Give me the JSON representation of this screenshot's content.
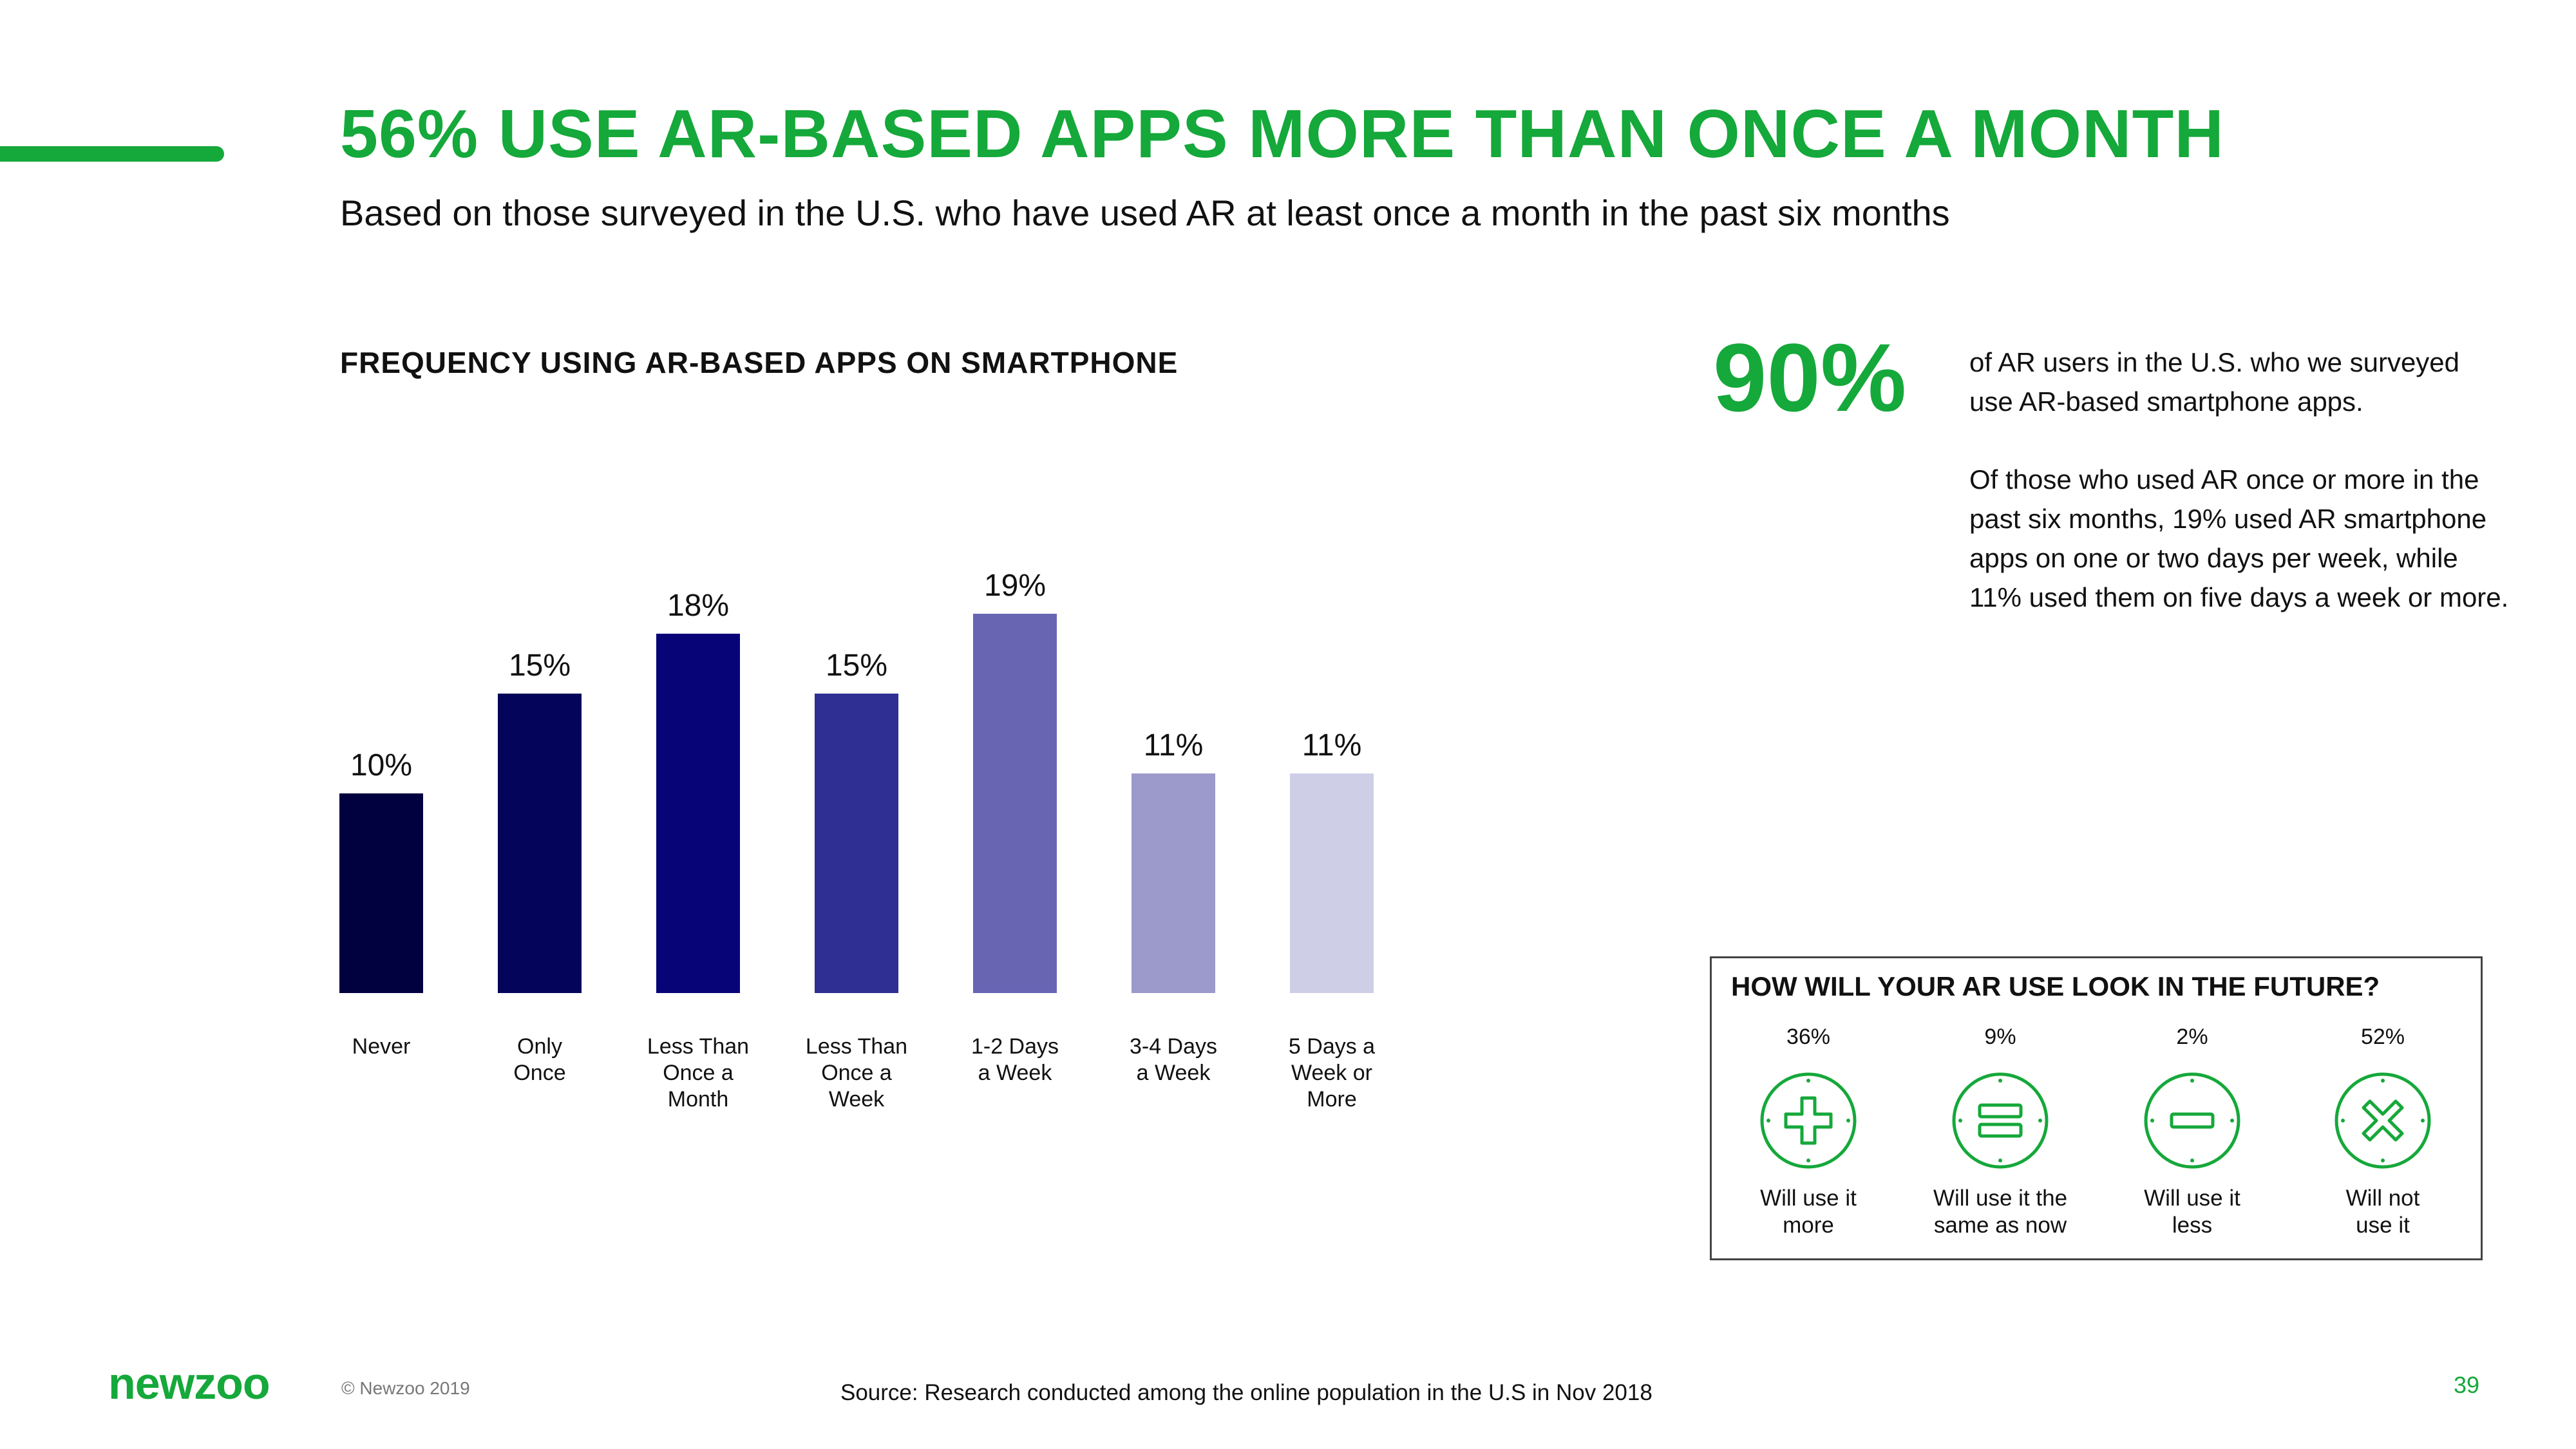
{
  "header": {
    "title": "56% USE AR-BASED APPS MORE THAN ONCE A MONTH",
    "subtitle": "Based on those surveyed in the U.S. who have used AR at least once a month in the past six months"
  },
  "chart_data": {
    "type": "bar",
    "title": "FREQUENCY USING AR-BASED APPS ON SMARTPHONE",
    "categories": [
      [
        "Never"
      ],
      [
        "Only",
        "Once"
      ],
      [
        "Less Than",
        "Once a",
        "Month"
      ],
      [
        "Less Than",
        "Once a",
        "Week"
      ],
      [
        "1-2 Days",
        "a Week"
      ],
      [
        "3-4 Days",
        "a Week"
      ],
      [
        "5 Days a",
        "Week or",
        "More"
      ]
    ],
    "values": [
      10,
      15,
      18,
      15,
      19,
      11,
      11
    ],
    "value_labels": [
      "10%",
      "15%",
      "18%",
      "15%",
      "19%",
      "11%",
      "11%"
    ],
    "bar_colors": [
      "#020140",
      "#04045a",
      "#070478",
      "#2e2e93",
      "#6866b3",
      "#9b9acb",
      "#cfcee7"
    ],
    "xlabel": "",
    "ylabel": "",
    "ylim": [
      0,
      25
    ],
    "grid": false
  },
  "stat": {
    "value": "90%",
    "text1": "of AR users in the U.S. who we surveyed use AR-based smartphone apps.",
    "text2": "Of those who used AR once or more in the past six months, 19% used AR smartphone apps on one or two days per week, while 11% used them on five days a week or more."
  },
  "future": {
    "title": "HOW WILL YOUR AR USE LOOK IN THE FUTURE?",
    "options": [
      {
        "pct": "36%",
        "label_lines": [
          "Will use it",
          "more"
        ],
        "icon": "plus-icon"
      },
      {
        "pct": "9%",
        "label_lines": [
          "Will use it the",
          "same as now"
        ],
        "icon": "equals-icon"
      },
      {
        "pct": "2%",
        "label_lines": [
          "Will use it",
          "less"
        ],
        "icon": "minus-icon"
      },
      {
        "pct": "52%",
        "label_lines": [
          "Will not",
          "use it"
        ],
        "icon": "cross-icon"
      }
    ]
  },
  "footer": {
    "logo": "newzoo",
    "copyright": "© Newzoo 2019",
    "source": "Source: Research conducted among the online population in the U.S in Nov 2018",
    "page_number": "39"
  },
  "colors": {
    "brand_green": "#15a83a"
  }
}
